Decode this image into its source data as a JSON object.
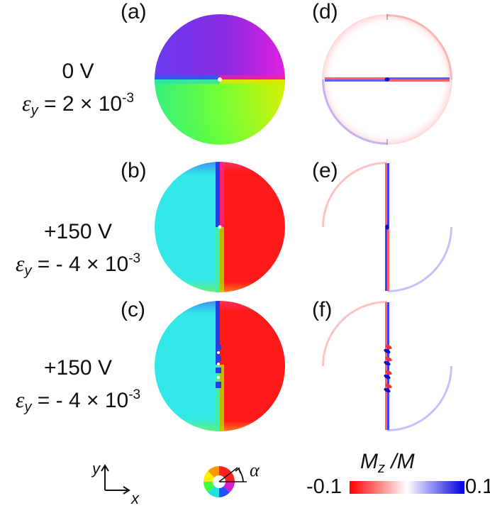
{
  "panels": {
    "a": "(a)",
    "b": "(b)",
    "c": "(c)",
    "d": "(d)",
    "e": "(e)",
    "f": "(f)"
  },
  "conditions": [
    {
      "voltage": "0 V",
      "eps_symbol": "ε",
      "eps_sub": "y",
      "eps_value": " = 2 × 10",
      "eps_exp": "-3"
    },
    {
      "voltage": "+150 V",
      "eps_symbol": "ε",
      "eps_sub": "y",
      "eps_value": " = - 4 × 10",
      "eps_exp": "-3"
    },
    {
      "voltage": "+150 V",
      "eps_symbol": "ε",
      "eps_sub": "y",
      "eps_value": " = - 4 × 10",
      "eps_exp": "-3"
    }
  ],
  "axes": {
    "y": "y",
    "x": "x"
  },
  "color_wheel": {
    "angle_label": "α"
  },
  "colorbar": {
    "label_main": "M",
    "label_sub": "z",
    "label_rest": " /M",
    "min_label": "-0.1",
    "max_label": "0.1",
    "colors": {
      "min": "#ff0000",
      "mid": "#ffffff",
      "max": "#0000e0"
    }
  },
  "colors": {
    "cyan": "#33e8e8",
    "red": "#ff1a1a",
    "violet": "#8a2be2",
    "magenta": "#e020e0",
    "green": "#66ff33",
    "yellow": "#c8ff00",
    "blue": "#1010c0"
  }
}
